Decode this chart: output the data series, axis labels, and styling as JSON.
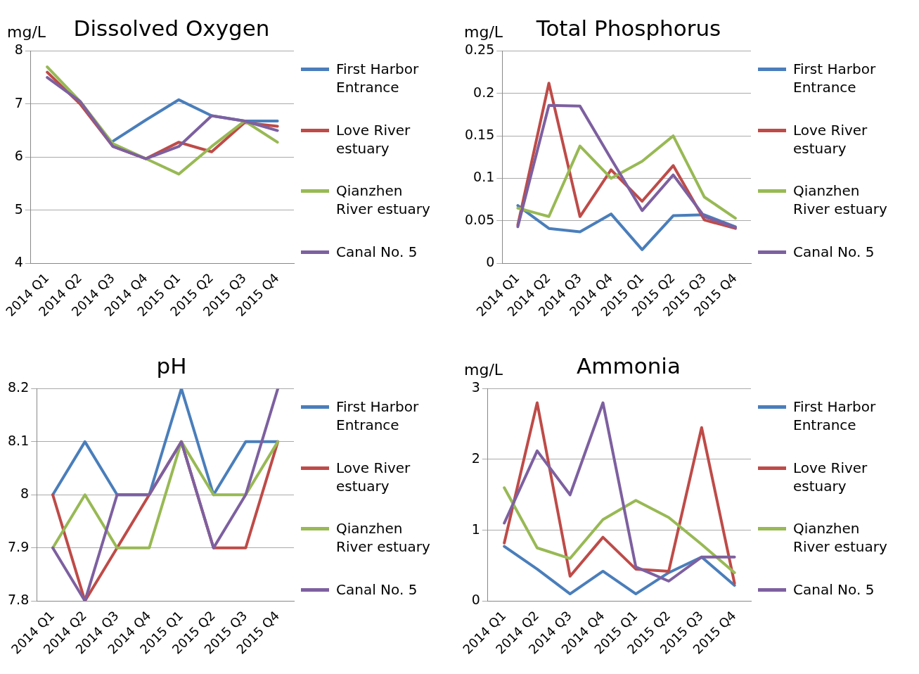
{
  "chart_data": [
    {
      "type": "line",
      "title": "Dissolved Oxygen",
      "ylabel": "mg/L",
      "categories": [
        "2014 Q1",
        "2014 Q2",
        "2014 Q3",
        "2014 Q4",
        "2015 Q1",
        "2015 Q2",
        "2015 Q3",
        "2015 Q4"
      ],
      "ylim": [
        4,
        8
      ],
      "yticks": [
        4,
        5,
        6,
        7,
        8
      ],
      "grid": "y",
      "legend": "right",
      "marker": "none",
      "line_style": "solid",
      "series": [
        {
          "name": "First Harbor Entrance",
          "color": "#4a7ebb",
          "values": [
            null,
            null,
            6.3,
            6.7,
            7.08,
            6.78,
            6.68,
            6.68
          ]
        },
        {
          "name": "Love River estuary",
          "color": "#be4b48",
          "values": [
            7.6,
            7.0,
            6.2,
            5.97,
            6.28,
            6.1,
            6.65,
            6.58
          ]
        },
        {
          "name": "Qianzhen River estuary",
          "color": "#98b954",
          "values": [
            7.7,
            7.05,
            6.25,
            5.97,
            5.68,
            6.2,
            6.68,
            6.28
          ]
        },
        {
          "name": "Canal No. 5",
          "color": "#7d60a0",
          "values": [
            7.5,
            7.05,
            6.2,
            5.97,
            6.2,
            6.78,
            6.68,
            6.5
          ]
        }
      ]
    },
    {
      "type": "line",
      "title": "Total Phosphorus",
      "ylabel": "mg/L",
      "categories": [
        "2014 Q1",
        "2014 Q2",
        "2014 Q3",
        "2014 Q4",
        "2015 Q1",
        "2015 Q2",
        "2015 Q3",
        "2015 Q4"
      ],
      "ylim": [
        0,
        0.25
      ],
      "yticks": [
        0,
        0.05,
        0.1,
        0.15,
        0.2,
        0.25
      ],
      "grid": "y",
      "legend": "right",
      "marker": "none",
      "line_style": "solid",
      "series": [
        {
          "name": "First Harbor Entrance",
          "color": "#4a7ebb",
          "values": [
            0.068,
            0.041,
            0.037,
            0.058,
            0.016,
            0.056,
            0.057,
            0.043
          ]
        },
        {
          "name": "Love River estuary",
          "color": "#be4b48",
          "values": [
            0.045,
            0.212,
            0.055,
            0.11,
            0.073,
            0.115,
            0.051,
            0.041
          ]
        },
        {
          "name": "Qianzhen River estuary",
          "color": "#98b954",
          "values": [
            0.065,
            0.055,
            0.138,
            0.1,
            0.12,
            0.15,
            0.078,
            0.053
          ]
        },
        {
          "name": "Canal No. 5",
          "color": "#7d60a0",
          "values": [
            0.043,
            0.186,
            0.185,
            0.123,
            0.062,
            0.104,
            0.055,
            0.042
          ]
        }
      ]
    },
    {
      "type": "line",
      "title": "pH",
      "categories": [
        "2014 Q1",
        "2014 Q2",
        "2014 Q3",
        "2014 Q4",
        "2015 Q1",
        "2015 Q2",
        "2015 Q3",
        "2015 Q4"
      ],
      "ylim": [
        7.8,
        8.2
      ],
      "yticks": [
        7.8,
        7.9,
        8,
        8.1,
        8.2
      ],
      "grid": "y",
      "legend": "right",
      "marker": "none",
      "line_style": "solid",
      "series": [
        {
          "name": "First Harbor Entrance",
          "color": "#4a7ebb",
          "values": [
            8,
            8.1,
            8,
            8,
            8.2,
            8,
            8.1,
            8.1
          ]
        },
        {
          "name": "Love River estuary",
          "color": "#be4b48",
          "values": [
            8,
            7.8,
            7.9,
            8,
            8.1,
            7.9,
            7.9,
            8.1
          ]
        },
        {
          "name": "Qianzhen River estuary",
          "color": "#98b954",
          "values": [
            7.9,
            8,
            7.9,
            7.9,
            8.1,
            8,
            8,
            8.1
          ]
        },
        {
          "name": "Canal No. 5",
          "color": "#7d60a0",
          "values": [
            7.9,
            7.8,
            8,
            8,
            8.1,
            7.9,
            8,
            8.2
          ]
        }
      ]
    },
    {
      "type": "line",
      "title": "Ammonia",
      "ylabel": "mg/L",
      "categories": [
        "2014 Q1",
        "2014 Q2",
        "2014 Q3",
        "2014 Q4",
        "2015 Q1",
        "2015 Q2",
        "2015 Q3",
        "2015 Q4"
      ],
      "ylim": [
        0,
        3
      ],
      "yticks": [
        0,
        1,
        2,
        3
      ],
      "grid": "y",
      "legend": "right",
      "marker": "none",
      "line_style": "solid",
      "series": [
        {
          "name": "First Harbor Entrance",
          "color": "#4a7ebb",
          "values": [
            0.77,
            0.45,
            0.1,
            0.42,
            0.1,
            0.4,
            0.62,
            0.22
          ]
        },
        {
          "name": "Love River estuary",
          "color": "#be4b48",
          "values": [
            0.82,
            2.8,
            0.35,
            0.9,
            0.45,
            0.42,
            2.45,
            0.25
          ]
        },
        {
          "name": "Qianzhen River estuary",
          "color": "#98b954",
          "values": [
            1.6,
            0.75,
            0.6,
            1.15,
            1.42,
            1.18,
            0.8,
            0.4
          ]
        },
        {
          "name": "Canal No. 5",
          "color": "#7d60a0",
          "values": [
            1.1,
            2.12,
            1.5,
            2.8,
            0.48,
            0.28,
            0.62,
            0.62
          ]
        }
      ]
    }
  ]
}
